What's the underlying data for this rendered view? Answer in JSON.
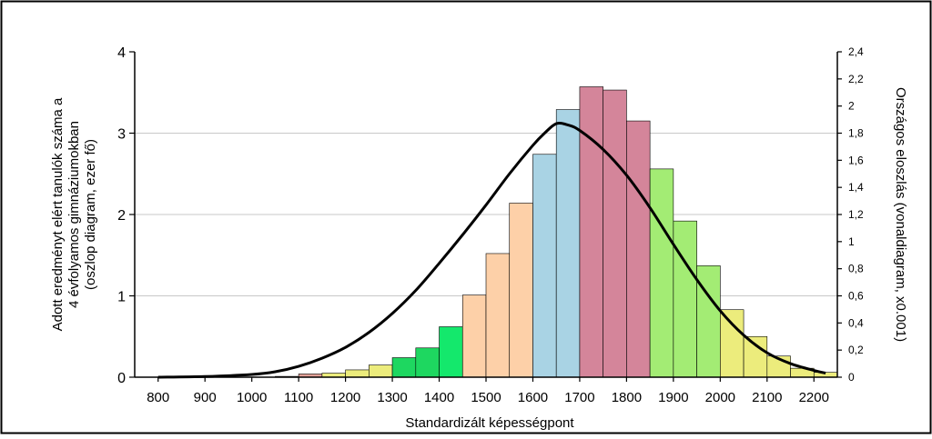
{
  "chart_data": {
    "type": "bar",
    "xlabel": "Standardizált képességpont",
    "ylabel_left_lines": [
      "Adott eredményt elért tanulók száma a",
      "4 évfolyamos gimnáziumokban",
      "(oszlop diagram, ezer fő)"
    ],
    "ylabel_right": "Országos eloszlás (vonaldiagram, x0.001)",
    "xlim": [
      750,
      2250
    ],
    "ylim_left": [
      0,
      4
    ],
    "ylim_right": [
      0,
      2.4
    ],
    "x_ticks": [
      "800",
      "900",
      "1000",
      "1100",
      "1200",
      "1300",
      "1400",
      "1500",
      "1600",
      "1700",
      "1800",
      "1900",
      "2000",
      "2100",
      "2200"
    ],
    "y_ticks_left": [
      "0",
      "1",
      "2",
      "3",
      "4"
    ],
    "y_ticks_right": [
      "0",
      "0,2",
      "0,4",
      "0,6",
      "0,8",
      "1",
      "1,2",
      "1,4",
      "1,6",
      "1,8",
      "2",
      "2,2",
      "2,4"
    ],
    "grid": "horizontal",
    "bar_width": 50,
    "bars": [
      {
        "x": 775,
        "value": 0.0,
        "color": "#e2a097"
      },
      {
        "x": 825,
        "value": 0.0,
        "color": "#e2a097"
      },
      {
        "x": 875,
        "value": 0.0,
        "color": "#e2a097"
      },
      {
        "x": 925,
        "value": 0.0,
        "color": "#e2a097"
      },
      {
        "x": 975,
        "value": 0.0,
        "color": "#e2a097"
      },
      {
        "x": 1025,
        "value": 0.0,
        "color": "#e2a097"
      },
      {
        "x": 1075,
        "value": 0.01,
        "color": "#e2a097"
      },
      {
        "x": 1125,
        "value": 0.04,
        "color": "#e2a097"
      },
      {
        "x": 1175,
        "value": 0.05,
        "color": "#ecec7c"
      },
      {
        "x": 1225,
        "value": 0.09,
        "color": "#ecec7c"
      },
      {
        "x": 1275,
        "value": 0.15,
        "color": "#ecec7c"
      },
      {
        "x": 1325,
        "value": 0.24,
        "color": "#1ed760"
      },
      {
        "x": 1375,
        "value": 0.36,
        "color": "#1ed760"
      },
      {
        "x": 1425,
        "value": 0.62,
        "color": "#14e86c"
      },
      {
        "x": 1475,
        "value": 1.01,
        "color": "#fdd0a8"
      },
      {
        "x": 1525,
        "value": 1.52,
        "color": "#fdd0a8"
      },
      {
        "x": 1575,
        "value": 2.14,
        "color": "#fdd0a8"
      },
      {
        "x": 1625,
        "value": 2.74,
        "color": "#a9d3e4"
      },
      {
        "x": 1675,
        "value": 3.29,
        "color": "#a9d3e4"
      },
      {
        "x": 1725,
        "value": 3.57,
        "color": "#d4859a"
      },
      {
        "x": 1775,
        "value": 3.53,
        "color": "#d4859a"
      },
      {
        "x": 1825,
        "value": 3.15,
        "color": "#d4859a"
      },
      {
        "x": 1875,
        "value": 2.56,
        "color": "#a3ec74"
      },
      {
        "x": 1925,
        "value": 1.92,
        "color": "#a3ec74"
      },
      {
        "x": 1975,
        "value": 1.37,
        "color": "#a3ec74"
      },
      {
        "x": 2025,
        "value": 0.83,
        "color": "#ecec7c"
      },
      {
        "x": 2075,
        "value": 0.5,
        "color": "#ecec7c"
      },
      {
        "x": 2125,
        "value": 0.26,
        "color": "#ecec7c"
      },
      {
        "x": 2175,
        "value": 0.11,
        "color": "#ecec7c"
      },
      {
        "x": 2225,
        "value": 0.06,
        "color": "#ecec7c"
      }
    ],
    "line": {
      "axis": "right",
      "color": "#000000",
      "points": [
        [
          800,
          0.0
        ],
        [
          900,
          0.005
        ],
        [
          1000,
          0.02
        ],
        [
          1050,
          0.04
        ],
        [
          1100,
          0.08
        ],
        [
          1150,
          0.14
        ],
        [
          1200,
          0.22
        ],
        [
          1250,
          0.33
        ],
        [
          1300,
          0.47
        ],
        [
          1350,
          0.64
        ],
        [
          1400,
          0.84
        ],
        [
          1450,
          1.05
        ],
        [
          1500,
          1.27
        ],
        [
          1550,
          1.5
        ],
        [
          1600,
          1.71
        ],
        [
          1625,
          1.8
        ],
        [
          1650,
          1.87
        ],
        [
          1675,
          1.86
        ],
        [
          1700,
          1.82
        ],
        [
          1750,
          1.68
        ],
        [
          1800,
          1.49
        ],
        [
          1850,
          1.25
        ],
        [
          1900,
          0.98
        ],
        [
          1950,
          0.72
        ],
        [
          2000,
          0.49
        ],
        [
          2050,
          0.31
        ],
        [
          2100,
          0.18
        ],
        [
          2150,
          0.1
        ],
        [
          2200,
          0.05
        ],
        [
          2225,
          0.03
        ]
      ]
    }
  }
}
